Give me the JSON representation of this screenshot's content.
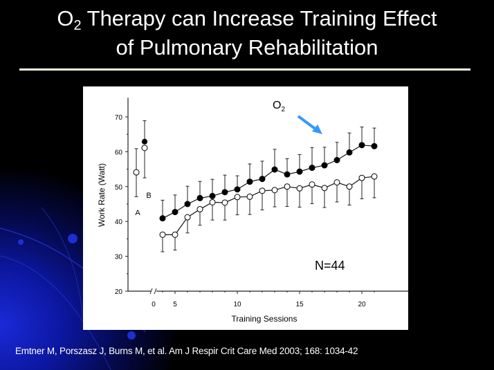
{
  "slide": {
    "title_line1_pre": "O",
    "title_line1_sub": "2",
    "title_line1_post": " Therapy can Increase Training Effect",
    "title_line2": "of Pulmonary Rehabilitation",
    "citation": "Emtner M, Porszasz J, Burns M, et al. Am J Respir Crit Care Med 2003; 168: 1034-42",
    "colors": {
      "background": "#000000",
      "accent_blue": "#3399ff",
      "rule": "#fffbe0"
    }
  },
  "chart_data": {
    "type": "line",
    "xlabel": "Training Sessions",
    "ylabel": "Work Rate (Watt)",
    "ylim": [
      20,
      75
    ],
    "yticks": [
      20,
      30,
      40,
      50,
      60,
      70
    ],
    "xticks": [
      0,
      5,
      10,
      15,
      20
    ],
    "axis_break": true,
    "grid": false,
    "annotations": {
      "o2_label": "O",
      "o2_sub": "2",
      "n_label": "N=44",
      "baseline_a": "A",
      "baseline_b": "B"
    },
    "x": [
      4,
      5,
      6,
      7,
      8,
      9,
      10,
      11,
      12,
      13,
      14,
      15,
      16,
      17,
      18,
      19,
      20,
      21
    ],
    "series": [
      {
        "marker": "filled",
        "baseline": {
          "A": {
            "value": 54.1,
            "error": 6.8
          },
          "B": {
            "value": 62.9,
            "error": 6.0
          }
        },
        "values": [
          40.9,
          42.7,
          45.0,
          46.7,
          47.3,
          48.4,
          49.2,
          51.4,
          52.2,
          54.9,
          53.5,
          54.3,
          55.4,
          56.1,
          57.6,
          59.8,
          61.9,
          61.6
        ],
        "error": [
          5.2,
          4.9,
          5.1,
          4.8,
          4.8,
          4.9,
          3.9,
          5.1,
          5.1,
          5.8,
          4.5,
          4.9,
          5.8,
          5.2,
          5.1,
          5.6,
          5.2,
          5.2
        ]
      },
      {
        "marker": "open",
        "baseline": {
          "A": {
            "value": 54.1,
            "error": 7.0
          },
          "B": {
            "value": 61.1,
            "error": 8.6
          }
        },
        "values": [
          36.2,
          36.2,
          41.2,
          43.5,
          45.5,
          45.4,
          47.0,
          47.1,
          48.8,
          49.0,
          50.0,
          49.5,
          50.6,
          49.6,
          51.2,
          50.0,
          52.5,
          52.9
        ],
        "error": [
          4.9,
          4.4,
          4.5,
          4.6,
          5.1,
          5.0,
          5.1,
          5.1,
          5.5,
          4.8,
          5.7,
          5.4,
          5.5,
          5.6,
          5.6,
          5.3,
          6.0,
          6.1
        ]
      }
    ]
  }
}
